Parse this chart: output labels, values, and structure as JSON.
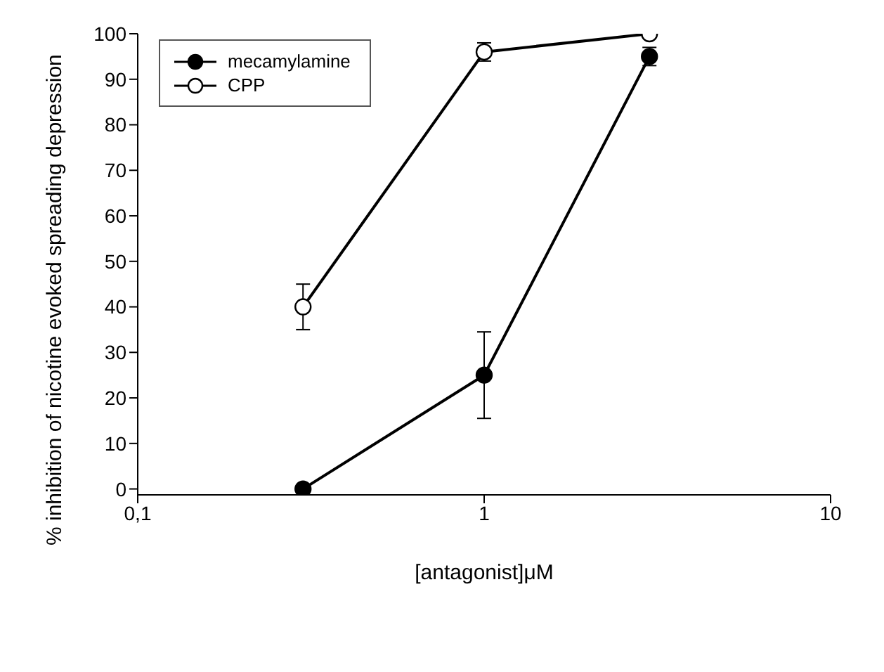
{
  "chart_data": {
    "type": "line",
    "xlabel": "[antagonist]μM",
    "ylabel": "% inhibition of nicotine evoked spreading depression",
    "log": "x",
    "xlim": [
      0.1,
      10
    ],
    "xticks": [
      {
        "value": 0.1,
        "label": "0,1"
      },
      1,
      10
    ],
    "ylim": [
      -1.3,
      100
    ],
    "yticks": [
      0,
      10,
      20,
      30,
      40,
      50,
      60,
      70,
      80,
      90,
      100
    ],
    "grid": false,
    "legend": "top left",
    "marker": "circle",
    "line_style": "solid",
    "series": [
      {
        "name": "mecamylamine",
        "color": "#000000",
        "x": [
          0.3,
          1,
          3
        ],
        "values": [
          0,
          25,
          95
        ],
        "errors": [
          null,
          9.5,
          2
        ]
      },
      {
        "name": "CPP",
        "color": "#ffffff",
        "x": [
          0.3,
          1,
          3
        ],
        "values": [
          40,
          96,
          100
        ],
        "errors": [
          5,
          2,
          null
        ]
      }
    ]
  }
}
